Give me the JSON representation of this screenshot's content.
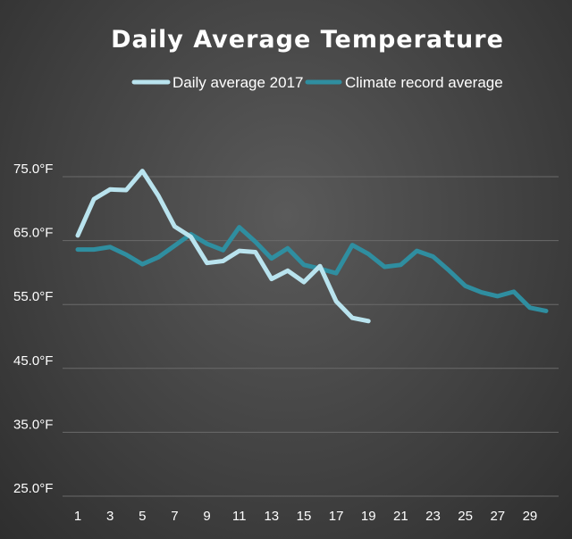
{
  "chart_data": {
    "type": "line",
    "title": "Daily Average Temperature",
    "xlabel": "",
    "ylabel": "",
    "ylim": [
      25,
      80
    ],
    "xlim": [
      1,
      30
    ],
    "y_ticks": [
      25,
      35,
      45,
      55,
      65,
      75
    ],
    "y_tick_labels": [
      "25.0°F",
      "35.0°F",
      "45.0°F",
      "55.0°F",
      "65.0°F",
      "75.0°F"
    ],
    "x_ticks": [
      1,
      3,
      5,
      7,
      9,
      11,
      13,
      15,
      17,
      19,
      21,
      23,
      25,
      27,
      29
    ],
    "x_tick_labels": [
      "1",
      "3",
      "5",
      "7",
      "9",
      "11",
      "13",
      "15",
      "17",
      "19",
      "21",
      "23",
      "25",
      "27",
      "29"
    ],
    "grid": true,
    "legend_position": "top",
    "series": [
      {
        "name": "Daily average 2017",
        "color": "#b9e3ee",
        "x": [
          1,
          2,
          3,
          4,
          5,
          6,
          7,
          8,
          9,
          10,
          11,
          12,
          13,
          14,
          15,
          16,
          17,
          18,
          19
        ],
        "values": [
          65.8,
          71.5,
          73.0,
          72.9,
          75.9,
          72.0,
          67.2,
          65.6,
          61.5,
          61.8,
          63.4,
          63.2,
          59.0,
          60.3,
          58.5,
          61.0,
          55.5,
          52.9,
          52.4
        ]
      },
      {
        "name": "Climate record average",
        "color": "#2f8ea0",
        "x": [
          1,
          2,
          3,
          4,
          5,
          6,
          7,
          8,
          9,
          10,
          11,
          12,
          13,
          14,
          15,
          16,
          17,
          18,
          19,
          20,
          21,
          22,
          23,
          24,
          25,
          26,
          27,
          28,
          29,
          30
        ],
        "values": [
          63.6,
          63.6,
          64.0,
          62.8,
          61.3,
          62.4,
          64.2,
          66.0,
          64.5,
          63.5,
          67.1,
          64.8,
          62.2,
          63.8,
          61.2,
          60.6,
          59.9,
          64.3,
          62.9,
          60.9,
          61.2,
          63.4,
          62.5,
          60.3,
          57.9,
          56.9,
          56.3,
          57.0,
          54.5,
          54.0
        ]
      }
    ]
  }
}
